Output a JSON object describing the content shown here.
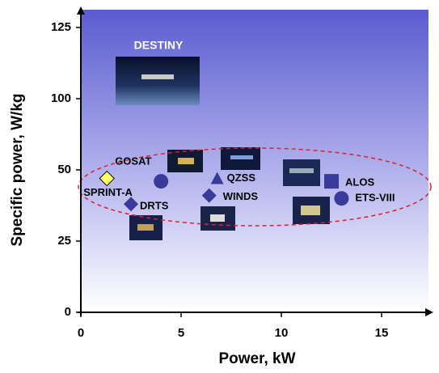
{
  "chart_data": {
    "type": "scatter",
    "x_label": "Power, kW",
    "y_label": "Specific power,  W/kg",
    "xlim": [
      0,
      17.5
    ],
    "xticks": [
      0,
      5,
      10,
      15
    ],
    "ylim": [
      0,
      130
    ],
    "yticks": [
      0,
      25,
      50,
      100,
      125
    ],
    "color": "#3a3a9c",
    "annotations": [
      "DESTINY"
    ],
    "points": [
      {
        "name": "SPRINT-A",
        "x": 1.3,
        "y": 47,
        "marker": "diamond",
        "color": "#ffff66"
      },
      {
        "name": "GOSAT",
        "x": 4.0,
        "y": 46,
        "marker": "circle"
      },
      {
        "name": "DRTS",
        "x": 2.5,
        "y": 38,
        "marker": "diamond"
      },
      {
        "name": "QZSS",
        "x": 6.8,
        "y": 47,
        "marker": "triangle"
      },
      {
        "name": "WINDS",
        "x": 6.4,
        "y": 41,
        "marker": "diamond"
      },
      {
        "name": "ALOS",
        "x": 12.5,
        "y": 46,
        "marker": "square"
      },
      {
        "name": "ETS-VIII",
        "x": 13.0,
        "y": 40,
        "marker": "circle"
      }
    ]
  }
}
